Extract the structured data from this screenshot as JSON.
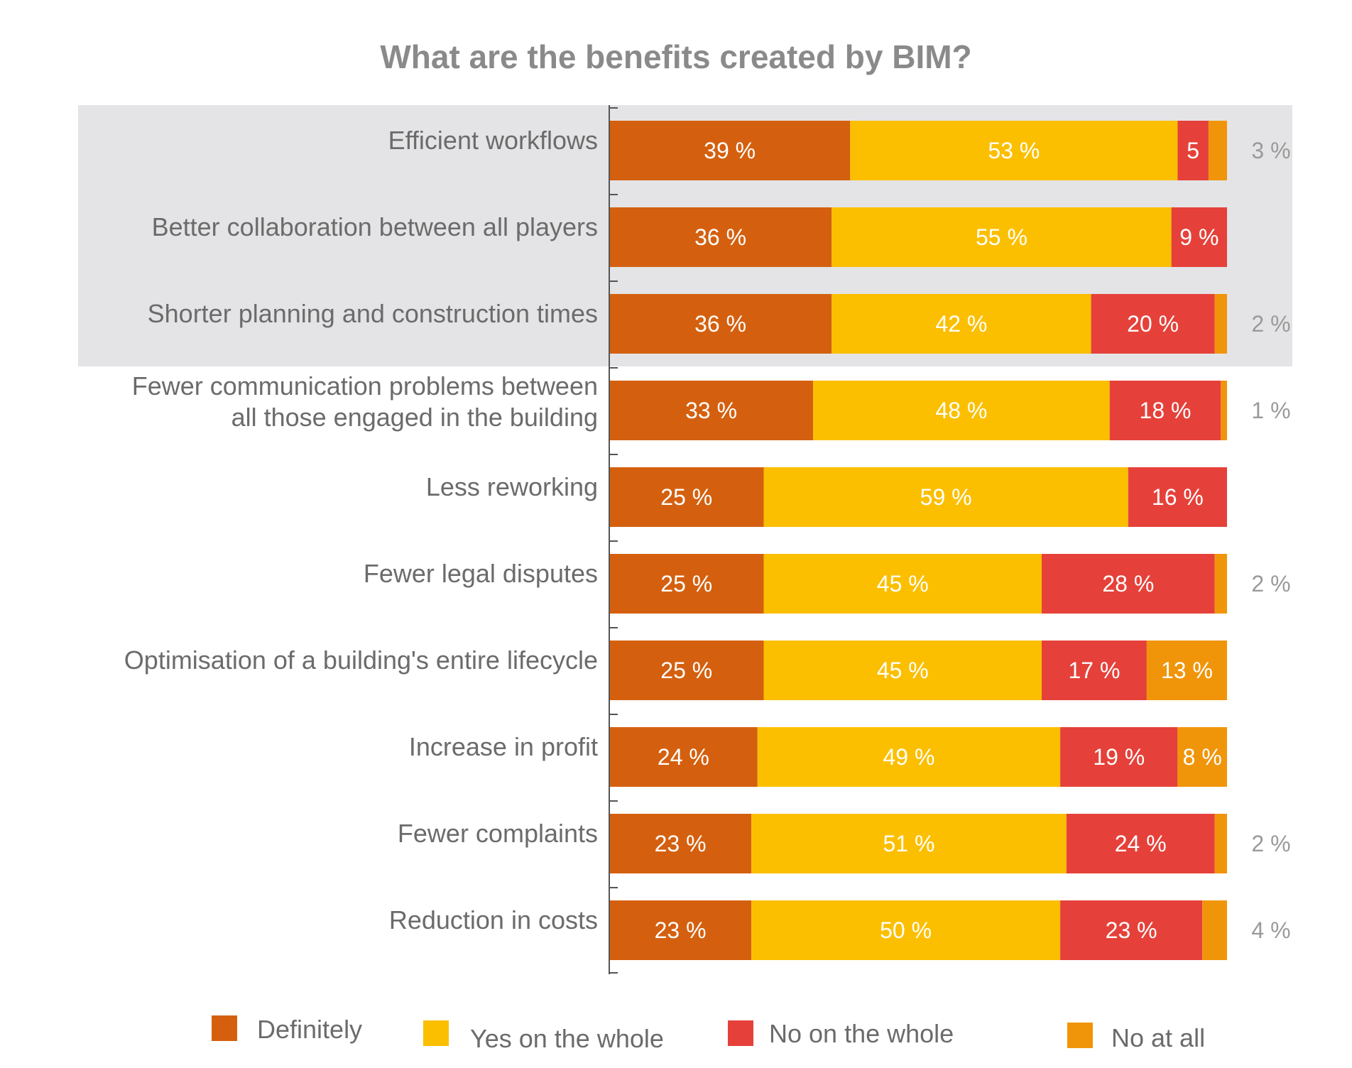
{
  "chart_data": {
    "type": "bar",
    "orientation": "horizontal",
    "stacked": true,
    "title": "What are the benefits created by BIM?",
    "categories": [
      [
        "Efficient workflows"
      ],
      [
        "Better collaboration between all players"
      ],
      [
        "Shorter planning and construction times"
      ],
      [
        "Fewer communication problems between",
        "all those engaged in the building"
      ],
      [
        "Less reworking"
      ],
      [
        "Fewer legal disputes"
      ],
      [
        "Optimisation of a building's entire lifecycle"
      ],
      [
        "Increase in profit"
      ],
      [
        "Fewer complaints"
      ],
      [
        "Reduction in costs"
      ]
    ],
    "highlighted_rows": 3,
    "series": [
      {
        "name": "Definitely",
        "color": "#d4600f",
        "values": [
          39,
          36,
          36,
          33,
          25,
          25,
          25,
          24,
          23,
          23
        ],
        "labels": [
          "39 %",
          "36 %",
          "36 %",
          "33 %",
          "25 %",
          "25 %",
          "25 %",
          "24 %",
          "23 %",
          "23 %"
        ]
      },
      {
        "name": "Yes on the whole",
        "color": "#fbbf00",
        "values": [
          53,
          55,
          42,
          48,
          59,
          45,
          45,
          49,
          51,
          50
        ],
        "labels": [
          "53 %",
          "55 %",
          "42 %",
          "48 %",
          "59 %",
          "45 %",
          "45 %",
          "49 %",
          "51 %",
          "50 %"
        ]
      },
      {
        "name": "No on the whole",
        "color": "#e5413a",
        "values": [
          5,
          9,
          20,
          18,
          16,
          28,
          17,
          19,
          24,
          23
        ],
        "labels": [
          "5",
          "9 %",
          "20 %",
          "18 %",
          "16 %",
          "28 %",
          "17 %",
          "19 %",
          "24 %",
          "23 %"
        ]
      },
      {
        "name": "No at all",
        "color": "#f0950a",
        "values": [
          3,
          0,
          2,
          1,
          0,
          2,
          13,
          8,
          2,
          4
        ],
        "labels": [
          "3 %",
          "",
          "2 %",
          "1 %",
          "",
          "2 %",
          "13 %",
          "8 %",
          "2 %",
          "4 %"
        ],
        "label_position": [
          "outside",
          "none",
          "outside",
          "outside",
          "none",
          "outside",
          "inside",
          "inside",
          "outside",
          "outside"
        ]
      }
    ],
    "xlim": [
      0,
      100
    ],
    "legend": "bottom"
  }
}
